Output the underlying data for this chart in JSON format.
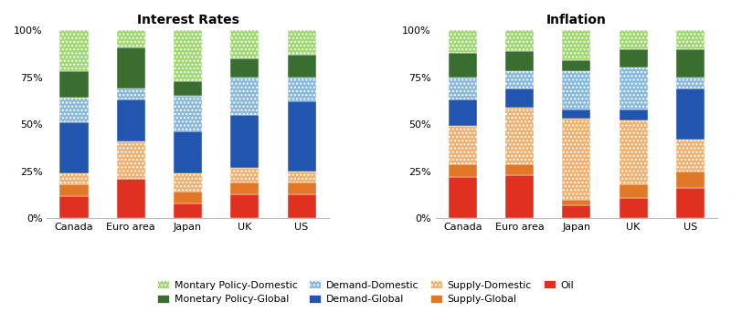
{
  "categories": [
    "Canada",
    "Euro area",
    "Japan",
    "UK",
    "US"
  ],
  "interest_rates": {
    "Oil": [
      0.12,
      0.21,
      0.08,
      0.13,
      0.13
    ],
    "Supply-Global": [
      0.06,
      0.0,
      0.06,
      0.06,
      0.06
    ],
    "Supply-Domestic": [
      0.06,
      0.2,
      0.1,
      0.08,
      0.06
    ],
    "Demand-Global": [
      0.27,
      0.22,
      0.22,
      0.28,
      0.37
    ],
    "Demand-Domestic": [
      0.13,
      0.06,
      0.19,
      0.2,
      0.13
    ],
    "Monetary Policy-Global": [
      0.14,
      0.22,
      0.08,
      0.1,
      0.12
    ],
    "Montary Policy-Domestic": [
      0.22,
      0.09,
      0.27,
      0.15,
      0.13
    ]
  },
  "inflation": {
    "Oil": [
      0.22,
      0.23,
      0.07,
      0.11,
      0.16
    ],
    "Supply-Global": [
      0.07,
      0.06,
      0.03,
      0.07,
      0.09
    ],
    "Supply-Domestic": [
      0.2,
      0.3,
      0.43,
      0.34,
      0.17
    ],
    "Demand-Global": [
      0.14,
      0.1,
      0.05,
      0.06,
      0.27
    ],
    "Demand-Domestic": [
      0.12,
      0.09,
      0.2,
      0.22,
      0.06
    ],
    "Monetary Policy-Global": [
      0.13,
      0.11,
      0.06,
      0.1,
      0.15
    ],
    "Montary Policy-Domestic": [
      0.12,
      0.11,
      0.16,
      0.1,
      0.1
    ]
  },
  "colors": {
    "Oil": "#e03020",
    "Supply-Global": "#e07828",
    "Supply-Domestic": "#f0b070",
    "Demand-Global": "#2255b0",
    "Demand-Domestic": "#88b8dc",
    "Monetary Policy-Global": "#3a6e30",
    "Montary Policy-Domestic": "#a0d870"
  },
  "hatches": {
    "Oil": "",
    "Supply-Global": "",
    "Supply-Domestic": "....",
    "Demand-Global": "",
    "Demand-Domestic": "....",
    "Monetary Policy-Global": "",
    "Montary Policy-Domestic": "...."
  },
  "title_interest": "Interest Rates",
  "title_inflation": "Inflation",
  "layer_order": [
    "Oil",
    "Supply-Global",
    "Supply-Domestic",
    "Demand-Global",
    "Demand-Domestic",
    "Monetary Policy-Global",
    "Montary Policy-Domestic"
  ],
  "legend_order": [
    "Montary Policy-Domestic",
    "Monetary Policy-Global",
    "Demand-Domestic",
    "Demand-Global",
    "Supply-Domestic",
    "Supply-Global",
    "Oil"
  ],
  "legend_ncol": 4,
  "legend_labels": [
    "Montary Policy-Domestic",
    "Monetary Policy-Global",
    "Demand-Domestic",
    "Demand-Global",
    "Supply-Domestic",
    "Supply-Global",
    "Oil"
  ]
}
